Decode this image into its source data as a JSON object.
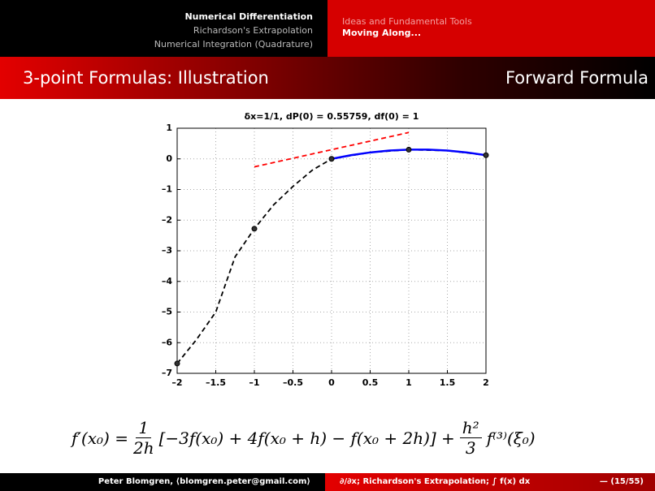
{
  "header": {
    "left_items": [
      "Numerical Differentiation",
      "Richardson's Extrapolation",
      "Numerical Integration (Quadrature)"
    ],
    "right_items": [
      "Ideas and Fundamental Tools",
      "Moving Along..."
    ]
  },
  "frame": {
    "title": "3-point Formulas: Illustration",
    "subtitle": "Forward Formula"
  },
  "chart_data": {
    "type": "line",
    "title": "δx=1/1,  dP(0) = 0.55759,  df(0) = 1",
    "xlim": [
      -2,
      2
    ],
    "xticks": [
      {
        "value": -2,
        "label": "–2"
      },
      {
        "value": -1.5,
        "label": "–1.5"
      },
      {
        "value": -1,
        "label": "–1"
      },
      {
        "value": -0.5,
        "label": "–0.5"
      },
      0,
      0.5,
      1,
      1.5,
      2
    ],
    "ylim": [
      -7,
      1
    ],
    "yticks": [
      {
        "value": -7,
        "label": "–7"
      },
      {
        "value": -6,
        "label": "–6"
      },
      {
        "value": -5,
        "label": "–5"
      },
      {
        "value": -4,
        "label": "–4"
      },
      {
        "value": -3,
        "label": "–3"
      },
      {
        "value": -2,
        "label": "–2"
      },
      {
        "value": -1,
        "label": "–1"
      },
      0,
      1
    ],
    "grid": true,
    "series": [
      {
        "color": "#000000",
        "style": "dashed",
        "x": [
          -2,
          -1.75,
          -1.5,
          -1.25,
          -1,
          -0.75,
          -0.5,
          -0.25,
          0,
          0.5,
          1,
          1.5,
          2
        ],
        "values": [
          -6.68,
          -5.9,
          -5.0,
          -3.2,
          -2.28,
          -1.5,
          -0.9,
          -0.37,
          0,
          0.21,
          0.3,
          0.27,
          0.12
        ]
      },
      {
        "color": "#0000ff",
        "style": "solid",
        "x": [
          0,
          0.25,
          0.5,
          0.75,
          1,
          1.25,
          1.5,
          1.75,
          2
        ],
        "values": [
          0,
          0.12,
          0.21,
          0.27,
          0.3,
          0.3,
          0.27,
          0.21,
          0.12
        ]
      },
      {
        "color": "#ff0000",
        "style": "dashed",
        "x": [
          -1,
          1
        ],
        "values": [
          -0.26,
          0.86
        ]
      },
      {
        "color": "#000000",
        "style": "markers",
        "x": [
          -2,
          -1,
          0,
          1,
          2
        ],
        "values": [
          -6.68,
          -2.28,
          0,
          0.3,
          0.12
        ]
      }
    ]
  },
  "formula": {
    "lhs": "f′(x₀) =",
    "frac1_num": "1",
    "frac1_den": "2h",
    "middle": "[−3f(x₀) + 4f(x₀ + h) − f(x₀ + 2h)] +",
    "frac2_num": "h²",
    "frac2_den": "3",
    "rhs": "f⁽³⁾(ξ₀)"
  },
  "footer": {
    "author": "Peter Blomgren, ⟨blomgren.peter@gmail.com⟩",
    "center": "∂/∂x; Richardson's Extrapolation; ∫ f(x) dx",
    "page": "— (15/55)"
  }
}
